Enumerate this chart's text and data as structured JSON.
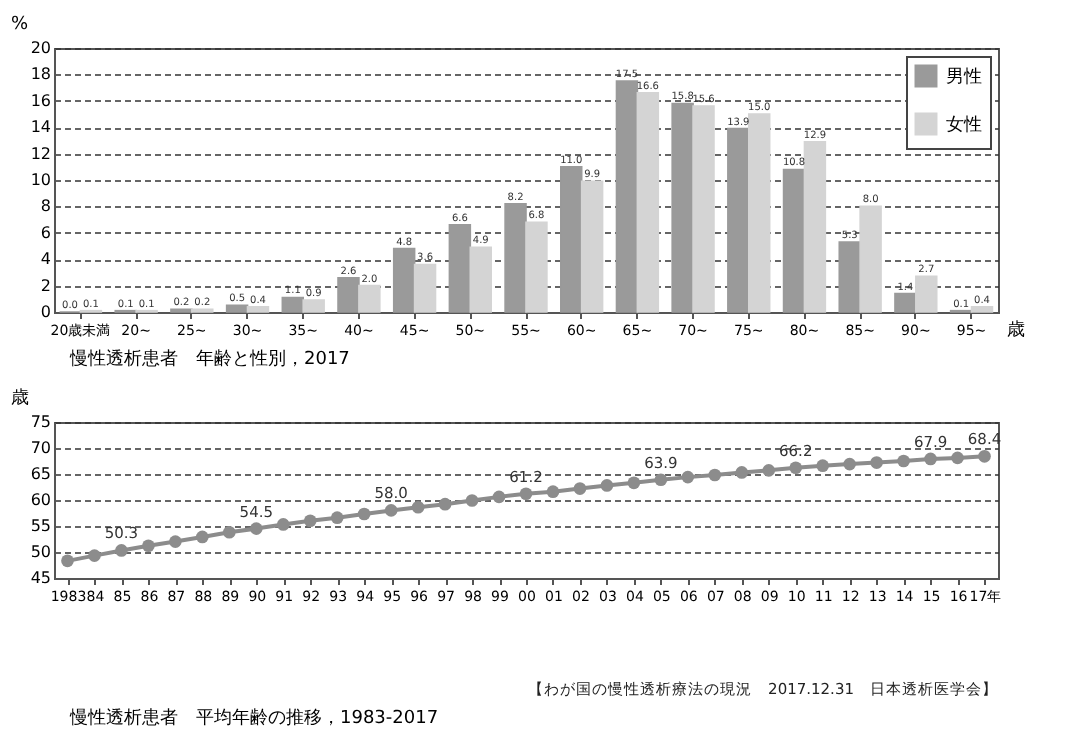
{
  "chart_data": [
    {
      "type": "bar",
      "title": "慢性透析患者　年齢と性別，2017",
      "xlabel": "歳",
      "ylabel": "%",
      "categories": [
        "20歳未満",
        "20~",
        "25~",
        "30~",
        "35~",
        "40~",
        "45~",
        "50~",
        "55~",
        "60~",
        "65~",
        "70~",
        "75~",
        "80~",
        "85~",
        "90~",
        "95~"
      ],
      "series": [
        {
          "name": "男性",
          "color": "#9a9a9a",
          "values": [
            0.0,
            0.1,
            0.2,
            0.5,
            1.1,
            2.6,
            4.8,
            6.6,
            8.2,
            11.0,
            17.5,
            15.8,
            13.9,
            10.8,
            5.3,
            1.4,
            0.1
          ],
          "value_labels": [
            "0.0",
            "0.1",
            "0.2",
            "0.5",
            "1.1",
            "2.6",
            "4.8",
            "6.6",
            "8.2",
            "11.0",
            "17.5",
            "15.8",
            "13.9",
            "10.8",
            "5.3",
            "1.4",
            "0.1"
          ]
        },
        {
          "name": "女性",
          "color": "#d4d4d4",
          "values": [
            0.1,
            0.1,
            0.2,
            0.4,
            0.9,
            2.0,
            3.6,
            4.9,
            6.8,
            9.9,
            16.6,
            15.6,
            15.0,
            12.9,
            8.0,
            2.7,
            0.4
          ],
          "value_labels": [
            "0.1",
            "0.1",
            "0.2",
            "0.4",
            "0.9",
            "2.0",
            "3.6",
            "4.9",
            "6.8",
            "9.9",
            "16.6",
            "15.6",
            "15.0",
            "12.9",
            "8.0",
            "2.7",
            "0.4"
          ]
        }
      ],
      "ylim": [
        0,
        20
      ],
      "yticks": [
        0,
        2,
        4,
        6,
        8,
        10,
        12,
        14,
        16,
        18,
        20
      ],
      "grid": "y",
      "legend": "top right"
    },
    {
      "type": "line",
      "title": "慢性透析患者　平均年齢の推移，1983-2017",
      "ylabel": "歳",
      "categories": [
        "1983",
        "84",
        "85",
        "86",
        "87",
        "88",
        "89",
        "90",
        "91",
        "92",
        "93",
        "94",
        "95",
        "96",
        "97",
        "98",
        "99",
        "00",
        "01",
        "02",
        "03",
        "04",
        "05",
        "06",
        "07",
        "08",
        "09",
        "10",
        "11",
        "12",
        "13",
        "14",
        "15",
        "16",
        "17年"
      ],
      "series": [
        {
          "color": "#8c8c8c",
          "values": [
            48.3,
            49.3,
            50.3,
            51.2,
            52.0,
            52.9,
            53.8,
            54.5,
            55.3,
            56.0,
            56.6,
            57.3,
            58.0,
            58.6,
            59.2,
            59.9,
            60.6,
            61.2,
            61.6,
            62.2,
            62.8,
            63.3,
            63.9,
            64.4,
            64.8,
            65.3,
            65.7,
            66.2,
            66.6,
            66.9,
            67.2,
            67.5,
            67.9,
            68.1,
            68.4
          ],
          "value_labels": [
            null,
            null,
            "50.3",
            null,
            null,
            null,
            null,
            "54.5",
            null,
            null,
            null,
            null,
            "58.0",
            null,
            null,
            null,
            null,
            "61.2",
            null,
            null,
            null,
            null,
            "63.9",
            null,
            null,
            null,
            null,
            "66.2",
            null,
            null,
            null,
            null,
            "67.9",
            null,
            "68.4"
          ]
        }
      ],
      "ylim": [
        45,
        75
      ],
      "yticks": [
        45,
        50,
        55,
        60,
        65,
        70,
        75
      ],
      "grid": "y",
      "marker": "circle",
      "line_style": "solid",
      "legend": false,
      "annotations": [
        "【わが国の慢性透析療法の現況　2017.12.31　日本透析医学会】"
      ]
    }
  ]
}
